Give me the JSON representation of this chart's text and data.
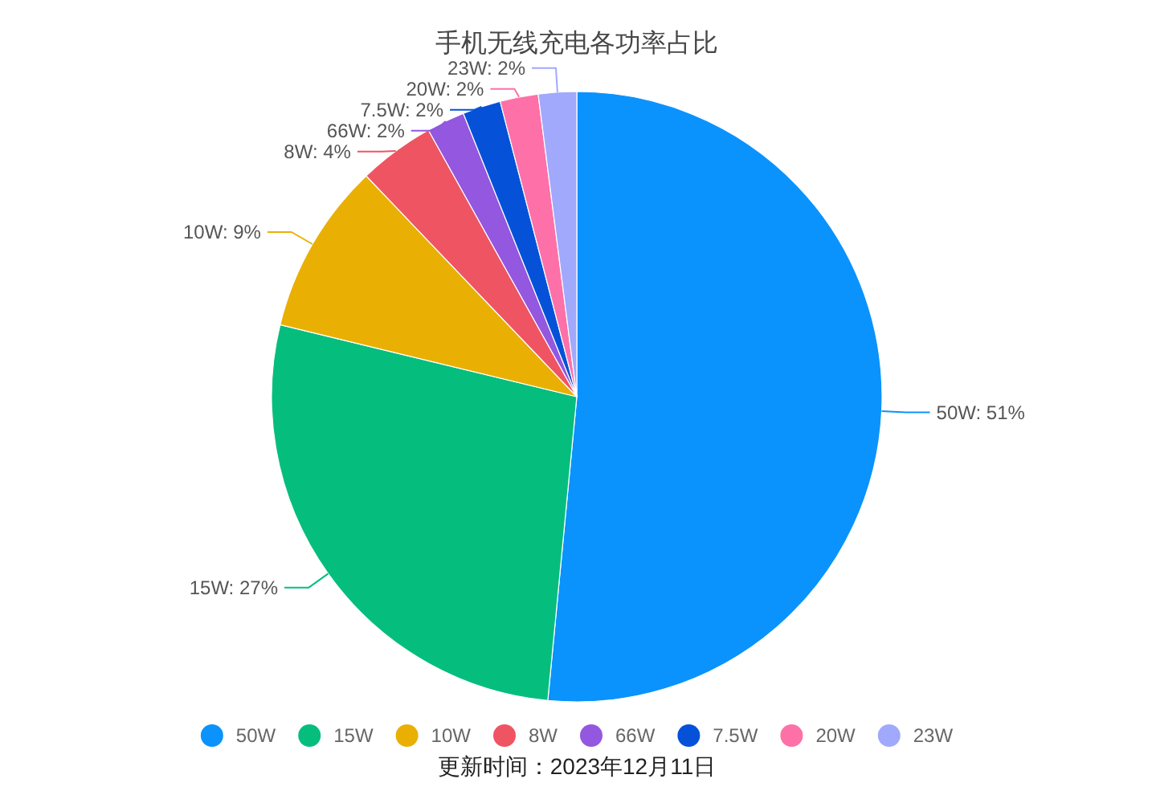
{
  "chart_data": {
    "type": "pie",
    "title": "手机无线充电各功率占比",
    "categories": [
      "50W",
      "15W",
      "10W",
      "8W",
      "66W",
      "7.5W",
      "20W",
      "23W"
    ],
    "values": [
      51,
      27,
      9,
      4,
      2,
      2,
      2,
      2
    ],
    "colors": [
      "#0a93fc",
      "#05be7e",
      "#e9b003",
      "#ef5462",
      "#9457e0",
      "#0552d9",
      "#fd71a8",
      "#a0a9fc"
    ],
    "value_labels": [
      "50W: 51%",
      "15W: 27%",
      "10W: 9%",
      "8W: 4%",
      "66W: 2%",
      "7.5W: 2%",
      "20W: 2%",
      "23W: 2%"
    ],
    "legend": "bottom",
    "annotations": [
      "更新时间：2023年12月11日"
    ]
  }
}
